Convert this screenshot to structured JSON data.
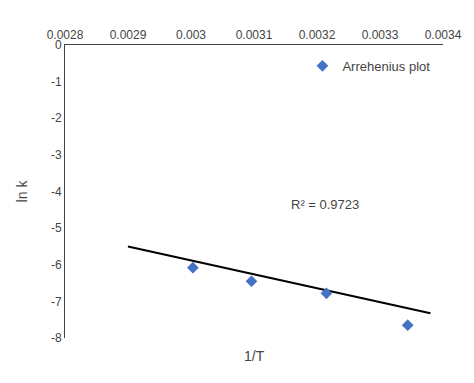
{
  "chart_data": {
    "type": "scatter",
    "xlabel": "1/T",
    "ylabel": "ln k",
    "series": [
      {
        "name": "Arrehenius plot",
        "type": "scatter",
        "marker": "diamond",
        "color": "#4472C4",
        "x": [
          0.003003,
          0.003096,
          0.003215,
          0.003344
        ],
        "values": [
          -6.08,
          -6.45,
          -6.78,
          -7.65
        ]
      },
      {
        "type": "line",
        "color": "#000000",
        "line_style": "solid",
        "x": [
          0.0029,
          0.00338
        ],
        "values": [
          -5.5,
          -7.324
        ]
      }
    ],
    "annotations": [
      {
        "text": "R² = 0.9723",
        "x": 0.003155,
        "y": -4.35
      }
    ],
    "xlim": [
      0.0028,
      0.0034
    ],
    "ylim": [
      -8,
      0
    ],
    "xticks": [
      0.0028,
      0.0029,
      0.003,
      0.0031,
      0.0032,
      0.0033,
      0.0034
    ],
    "yticks": [
      0,
      -1,
      -2,
      -3,
      -4,
      -5,
      -6,
      -7,
      -8
    ],
    "grid": false,
    "legend": "upper right"
  }
}
